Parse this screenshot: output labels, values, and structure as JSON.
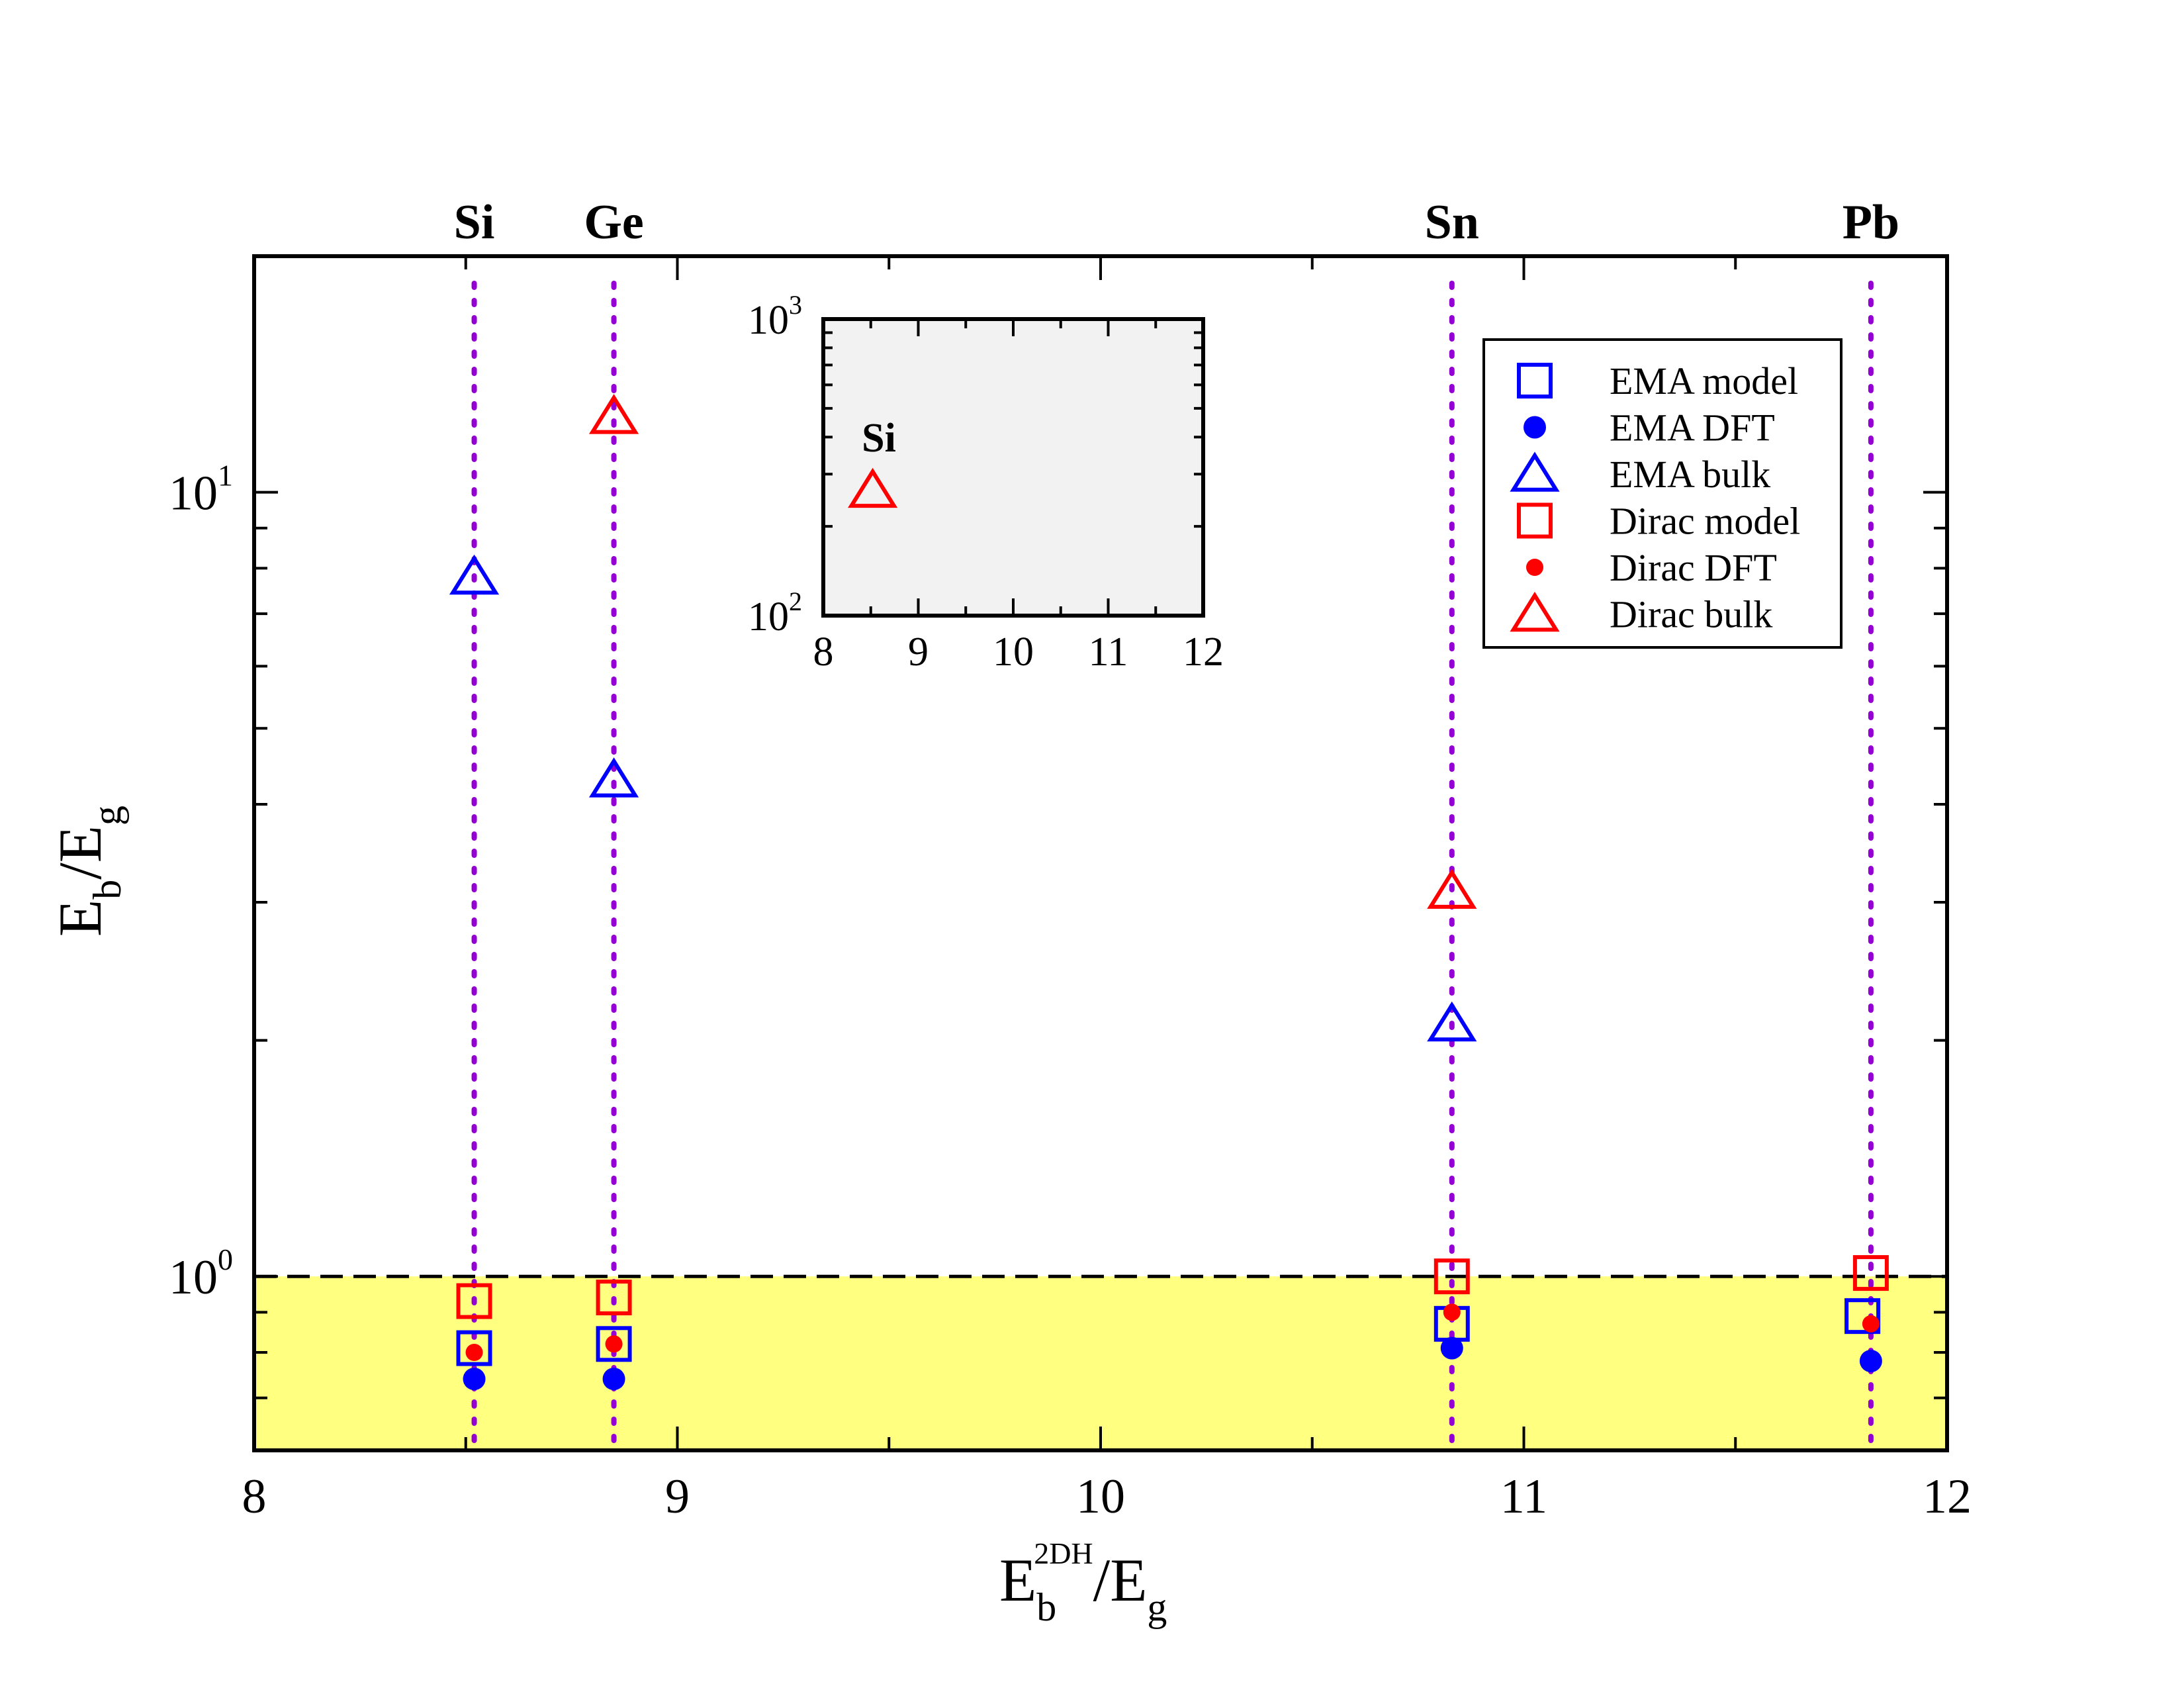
{
  "chart_data": [
    {
      "type": "scatter",
      "xlabel": {
        "main": "E",
        "sub": "b",
        "sup": "2DH",
        "tail": "/E",
        "tail_sub": "g"
      },
      "ylabel": {
        "main": "E",
        "sub": "b",
        "tail": "/E",
        "tail_sub": "g"
      },
      "xlim": [
        8,
        12
      ],
      "ylim": [
        0.6,
        20
      ],
      "y_scale": "log",
      "x_ticks": [
        "8",
        "9",
        "10",
        "11",
        "12"
      ],
      "y_ticks": [
        {
          "base": "10",
          "exp": "0",
          "value": 1
        },
        {
          "base": "10",
          "exp": "1",
          "value": 10
        }
      ],
      "reference_line_y": 1,
      "shaded_region": {
        "y_from": 0.6,
        "y_to": 1,
        "color": "#ffff80"
      },
      "materials": [
        {
          "name": "Si",
          "x": 8.52
        },
        {
          "name": "Ge",
          "x": 8.85
        },
        {
          "name": "Sn",
          "x": 10.83
        },
        {
          "name": "Pb",
          "x": 11.82
        }
      ],
      "legend_position": "top-right",
      "series": [
        {
          "name": "EMA model",
          "marker": "open-square",
          "color": "#0000ff",
          "points": [
            [
              8.52,
              0.81
            ],
            [
              8.85,
              0.82
            ],
            [
              10.83,
              0.87
            ],
            [
              11.8,
              0.89
            ]
          ]
        },
        {
          "name": "EMA DFT",
          "marker": "filled-circle",
          "color": "#0000ff",
          "points": [
            [
              8.52,
              0.74
            ],
            [
              8.85,
              0.74
            ],
            [
              10.83,
              0.81
            ],
            [
              11.82,
              0.78
            ]
          ]
        },
        {
          "name": "EMA bulk",
          "marker": "open-triangle",
          "color": "#0000ff",
          "points": [
            [
              8.52,
              7.8
            ],
            [
              8.85,
              4.3
            ],
            [
              10.83,
              2.1
            ]
          ]
        },
        {
          "name": "Dirac model",
          "marker": "open-square",
          "color": "#ff0000",
          "points": [
            [
              8.52,
              0.93
            ],
            [
              8.85,
              0.94
            ],
            [
              10.83,
              1.0
            ],
            [
              11.82,
              1.01
            ]
          ]
        },
        {
          "name": "Dirac DFT",
          "marker": "small-filled-circle",
          "color": "#ff0000",
          "points": [
            [
              8.52,
              0.8
            ],
            [
              8.85,
              0.82
            ],
            [
              10.83,
              0.9
            ],
            [
              11.82,
              0.87
            ]
          ]
        },
        {
          "name": "Dirac bulk",
          "marker": "open-triangle",
          "color": "#ff0000",
          "points": [
            [
              8.85,
              12.5
            ],
            [
              10.83,
              3.1
            ]
          ]
        }
      ]
    },
    {
      "type": "scatter",
      "inset": true,
      "xlim": [
        8,
        12
      ],
      "ylim": [
        100,
        1000
      ],
      "y_scale": "log",
      "x_ticks": [
        "8",
        "9",
        "10",
        "11",
        "12"
      ],
      "y_ticks": [
        {
          "base": "10",
          "exp": "2",
          "value": 100
        },
        {
          "base": "10",
          "exp": "3",
          "value": 1000
        }
      ],
      "background": "#f2f2f2",
      "annotation": "Si",
      "series": [
        {
          "marker": "open-triangle",
          "color": "#ff0000",
          "points": [
            [
              8.52,
              265
            ]
          ]
        }
      ]
    }
  ]
}
